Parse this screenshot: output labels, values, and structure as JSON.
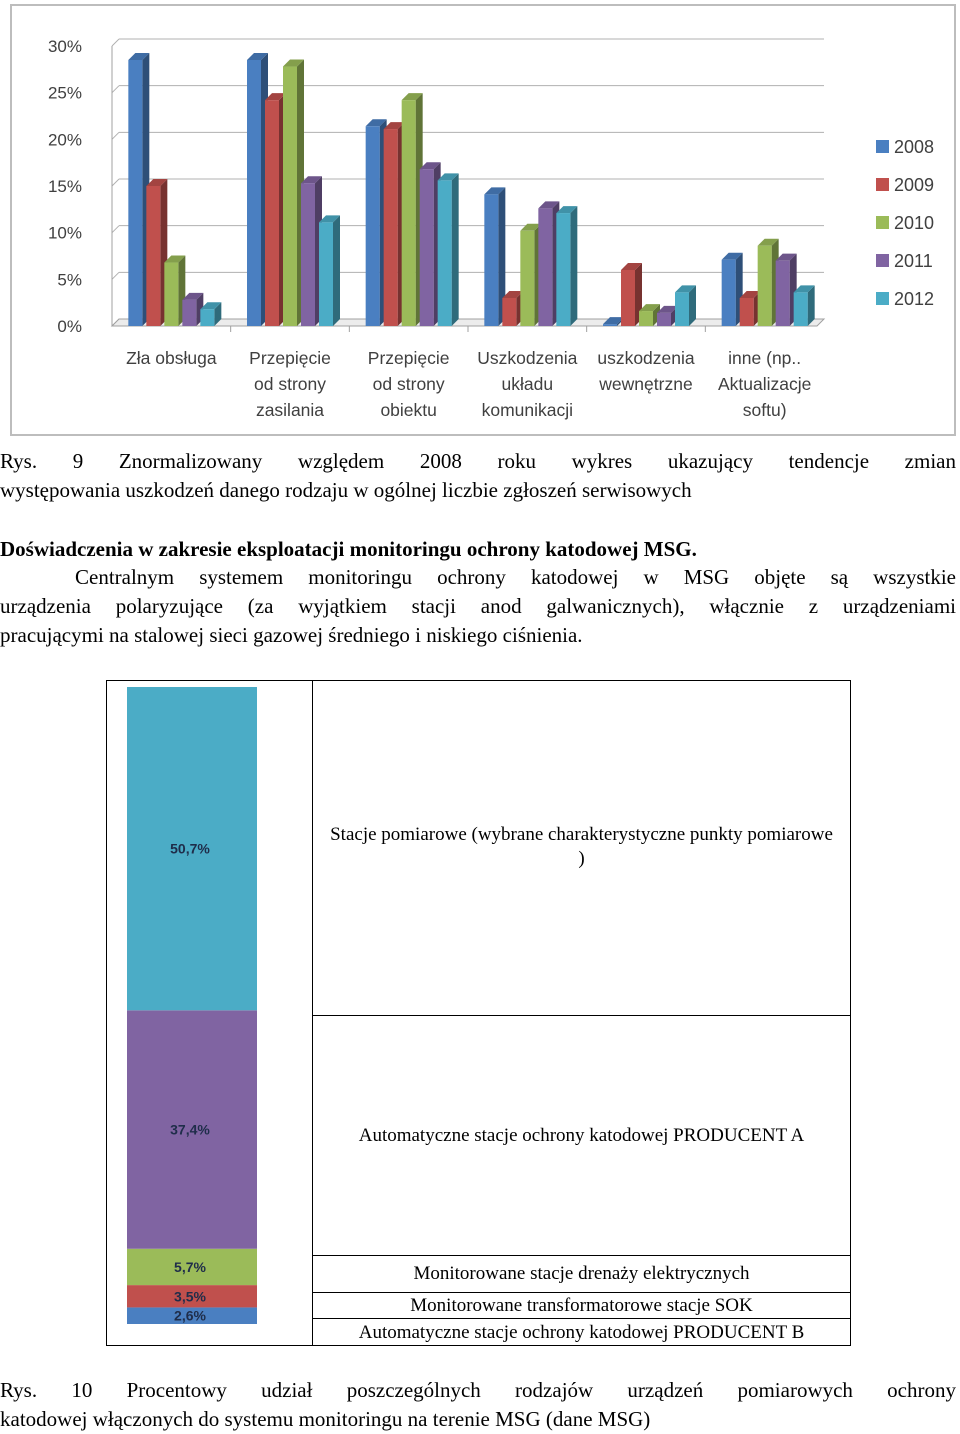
{
  "chart_data": [
    {
      "type": "bar",
      "title": "",
      "xlabel": "",
      "ylabel": "",
      "ylim": [
        0,
        30
      ],
      "yticks": [
        "0%",
        "5%",
        "10%",
        "15%",
        "20%",
        "25%",
        "30%"
      ],
      "grid": true,
      "legend_position": "right",
      "categories": [
        [
          "Zła obsługa"
        ],
        [
          "Przepięcie",
          "od strony",
          "zasilania"
        ],
        [
          "Przepięcie",
          "od strony",
          "obiektu"
        ],
        [
          "Uszkodzenia",
          "układu",
          "komunikacji"
        ],
        [
          "uszkodzenia",
          "wewnętrzne"
        ],
        [
          "inne (np..",
          "Aktualizacje",
          "softu)"
        ]
      ],
      "series": [
        {
          "name": "2008",
          "color": "#4a7fc1",
          "values": [
            28.5,
            28.5,
            21.4,
            14.1,
            0.2,
            7.1
          ]
        },
        {
          "name": "2009",
          "color": "#c0504d",
          "values": [
            15.0,
            24.2,
            21.1,
            3.0,
            6.0,
            3.0
          ]
        },
        {
          "name": "2010",
          "color": "#9bbb59",
          "values": [
            6.8,
            27.8,
            24.2,
            10.2,
            1.6,
            8.6
          ]
        },
        {
          "name": "2011",
          "color": "#8064a2",
          "values": [
            2.8,
            15.3,
            16.8,
            12.6,
            1.4,
            7.0
          ]
        },
        {
          "name": "2012",
          "color": "#4bacc6",
          "values": [
            1.8,
            11.1,
            15.6,
            12.1,
            3.6,
            3.6
          ]
        }
      ]
    },
    {
      "type": "bar",
      "stacked": true,
      "title": "",
      "ylim": [
        0,
        100
      ],
      "segments": [
        {
          "label": "2,6%",
          "value": 2.6,
          "color": "#4a7fc1",
          "legend": "Automatyczne stacje ochrony katodowej PRODUCENT B"
        },
        {
          "label": "3,5%",
          "value": 3.5,
          "color": "#c0504d",
          "legend": "Monitorowane transformatorowe stacje SOK"
        },
        {
          "label": "5,7%",
          "value": 5.7,
          "color": "#9bbb59",
          "legend": "Monitorowane stacje drenaży elektrycznych"
        },
        {
          "label": "37,4%",
          "value": 37.4,
          "color": "#8064a2",
          "legend": "Automatyczne stacje ochrony katodowej PRODUCENT A"
        },
        {
          "label": "50,7%",
          "value": 50.7,
          "color": "#4bacc6",
          "legend": "Stacje pomiarowe (wybrane charakterystyczne punkty pomiarowe )"
        }
      ]
    }
  ],
  "text": {
    "caption9": "Rys. 9 Znormalizowany względem 2008 roku wykres ukazujący tendencje zmian występowania uszkodzeń danego rodzaju w ogólnej liczbie zgłoszeń serwisowych",
    "heading": "Doświadczenia w zakresie eksploatacji monitoringu ochrony katodowej MSG.",
    "paragraph": "Centralnym systemem monitoringu ochrony katodowej w MSG objęte są wszystkie urządzenia polaryzujące (za wyjątkiem stacji anod galwanicznych), włącznie z urządzeniami pracującymi na stalowej sieci gazowej średniego i niskiego ciśnienia.",
    "caption10": "Rys. 10 Procentowy udział poszczególnych rodzajów urządzeń pomiarowych ochrony katodowej włączonych do systemu monitoringu na terenie MSG (dane MSG)"
  }
}
